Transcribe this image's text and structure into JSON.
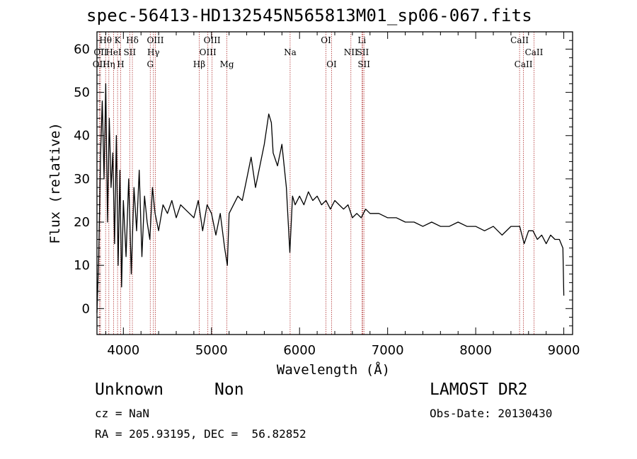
{
  "title": "spec-56413-HD132545N565813M01_sp06-067.fits",
  "chart_data": {
    "type": "line",
    "title": "spec-56413-HD132545N565813M01_sp06-067.fits",
    "xlabel": "Wavelength (Å)",
    "ylabel": "Flux (relative)",
    "xlim": [
      3700,
      9100
    ],
    "ylim": [
      -6,
      64
    ],
    "xticks": [
      4000,
      5000,
      6000,
      7000,
      8000,
      9000
    ],
    "yticks": [
      0,
      10,
      20,
      30,
      40,
      50,
      60
    ],
    "grid": false,
    "series": [
      {
        "x": [
          3700,
          3720,
          3740,
          3760,
          3780,
          3800,
          3820,
          3840,
          3860,
          3880,
          3900,
          3920,
          3940,
          3960,
          3980,
          4000,
          4030,
          4060,
          4090,
          4120,
          4150,
          4180,
          4210,
          4240,
          4270,
          4300,
          4330,
          4360,
          4400,
          4450,
          4500,
          4550,
          4600,
          4650,
          4700,
          4750,
          4800,
          4850,
          4900,
          4950,
          5000,
          5050,
          5100,
          5150,
          5180,
          5200,
          5250,
          5300,
          5350,
          5400,
          5450,
          5500,
          5550,
          5600,
          5650,
          5680,
          5700,
          5750,
          5800,
          5850,
          5890,
          5920,
          5950,
          6000,
          6050,
          6100,
          6150,
          6200,
          6250,
          6300,
          6350,
          6400,
          6450,
          6500,
          6550,
          6600,
          6650,
          6700,
          6750,
          6800,
          6900,
          7000,
          7100,
          7200,
          7300,
          7400,
          7500,
          7600,
          7700,
          7800,
          7900,
          8000,
          8100,
          8200,
          8300,
          8400,
          8500,
          8550,
          8600,
          8650,
          8700,
          8750,
          8800,
          8850,
          8900,
          8950,
          8990,
          9000
        ],
        "y": [
          -1,
          12,
          35,
          48,
          30,
          52,
          20,
          44,
          28,
          36,
          15,
          40,
          10,
          32,
          5,
          25,
          12,
          30,
          8,
          28,
          18,
          32,
          12,
          26,
          20,
          16,
          28,
          22,
          18,
          24,
          22,
          25,
          21,
          24,
          23,
          22,
          21,
          25,
          18,
          24,
          22,
          17,
          22,
          14,
          10,
          22,
          24,
          26,
          25,
          30,
          35,
          28,
          33,
          38,
          45,
          43,
          36,
          33,
          38,
          28,
          13,
          26,
          24,
          26,
          24,
          27,
          25,
          26,
          24,
          25,
          23,
          25,
          24,
          23,
          24,
          21,
          22,
          21,
          23,
          22,
          22,
          21,
          21,
          20,
          20,
          19,
          20,
          19,
          19,
          20,
          19,
          19,
          18,
          19,
          17,
          19,
          19,
          15,
          18,
          18,
          16,
          17,
          15,
          17,
          16,
          16,
          14,
          3
        ]
      }
    ],
    "lines": [
      {
        "label": "OII",
        "x": 3727,
        "row": 3
      },
      {
        "label": "Hθ",
        "x": 3798,
        "row": 1
      },
      {
        "label": "OII",
        "x": 3740,
        "row": 2
      },
      {
        "label": "Hη",
        "x": 3835,
        "row": 3
      },
      {
        "label": "HeI",
        "x": 3889,
        "row": 2
      },
      {
        "label": "K",
        "x": 3934,
        "row": 1
      },
      {
        "label": "H",
        "x": 3969,
        "row": 3
      },
      {
        "label": "SII",
        "x": 4072,
        "row": 2
      },
      {
        "label": "Hδ",
        "x": 4102,
        "row": 1
      },
      {
        "label": "OIII",
        "x": 4363,
        "row": 1
      },
      {
        "label": "Hγ",
        "x": 4341,
        "row": 2
      },
      {
        "label": "G",
        "x": 4305,
        "row": 3
      },
      {
        "label": "Hβ",
        "x": 4861,
        "row": 3
      },
      {
        "label": "OIII",
        "x": 5007,
        "row": 1
      },
      {
        "label": "OIII",
        "x": 4959,
        "row": 2
      },
      {
        "label": "Mg",
        "x": 5175,
        "row": 3
      },
      {
        "label": "Na",
        "x": 5893,
        "row": 2
      },
      {
        "label": "OI",
        "x": 6300,
        "row": 1
      },
      {
        "label": "OI",
        "x": 6364,
        "row": 3
      },
      {
        "label": "NII",
        "x": 6583,
        "row": 2
      },
      {
        "label": "Li",
        "x": 6708,
        "row": 1
      },
      {
        "label": "SII",
        "x": 6717,
        "row": 2
      },
      {
        "label": "SII",
        "x": 6731,
        "row": 3
      },
      {
        "label": "CaII",
        "x": 8498,
        "row": 1
      },
      {
        "label": "CaII",
        "x": 8542,
        "row": 3
      },
      {
        "label": "CaII",
        "x": 8662,
        "row": 2
      }
    ]
  },
  "info": {
    "class": "Unknown",
    "subclass": "Non",
    "survey": "LAMOST DR2",
    "cz": "cz = NaN",
    "obsdate": "Obs-Date: 20130430",
    "coords": "RA = 205.93195, DEC =  56.82852"
  }
}
